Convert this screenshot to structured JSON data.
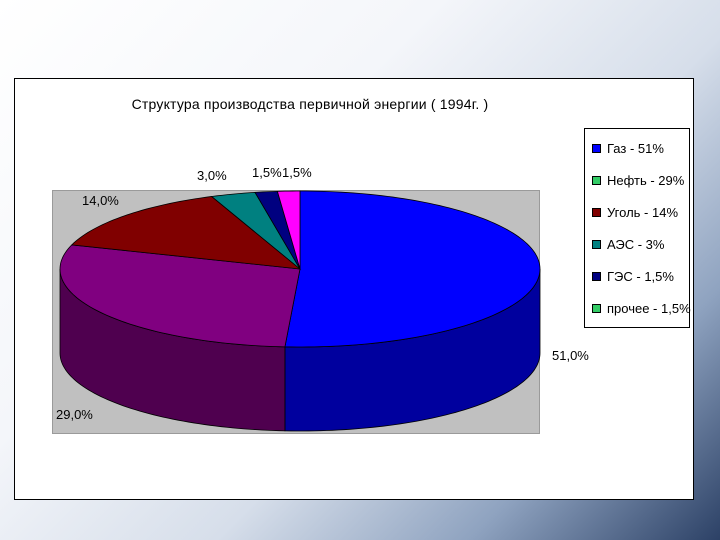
{
  "chart_data": {
    "type": "pie",
    "title": "Структура производства первичной энергии ( 1994г. )",
    "categories": [
      "Газ",
      "Нефть",
      "Уголь",
      "АЭС",
      "ГЭС",
      "прочее"
    ],
    "values": [
      51.0,
      29.0,
      14.0,
      3.0,
      1.5,
      1.5
    ],
    "data_labels": [
      "51,0%",
      "29,0%",
      "14,0%",
      "3,0%",
      "1,5%",
      "1,5%"
    ],
    "legend_entries": [
      "Газ - 51%",
      "Нефть - 29%",
      "Уголь - 14%",
      "АЭС - 3%",
      "ГЭС - 1,5%",
      "прочее - 1,5%"
    ],
    "legend_position": "right",
    "three_d": true,
    "colors": [
      "#0000ff",
      "#800080",
      "#800000",
      "#008080",
      "#000080",
      "#ff00ff"
    ],
    "legend_swatch_colors": [
      "#0000ff",
      "#33cc66",
      "#800000",
      "#008080",
      "#000080",
      "#33cc66"
    ]
  }
}
